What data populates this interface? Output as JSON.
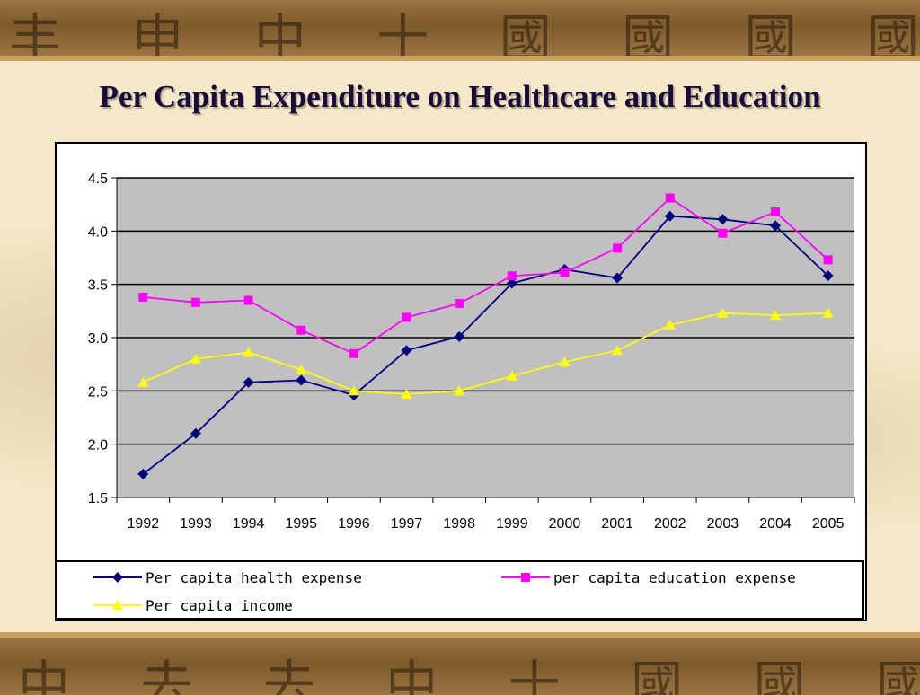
{
  "page": {
    "title": "Per Capita Expenditure on Healthcare and Education",
    "colors": {
      "band": "#7d5a2c",
      "paper": "#f4e8c8",
      "title": "#1a0c3a",
      "plot_area": "#c0c0c0"
    }
  },
  "chart_data": {
    "type": "line",
    "title": "",
    "xlabel": "",
    "ylabel": "",
    "categories": [
      "1992",
      "1993",
      "1994",
      "1995",
      "1996",
      "1997",
      "1998",
      "1999",
      "2000",
      "2001",
      "2002",
      "2003",
      "2004",
      "2005"
    ],
    "ylim": [
      1.5,
      4.5
    ],
    "yticks": [
      "1.5",
      "2.0",
      "2.5",
      "3.0",
      "3.5",
      "4.0",
      "4.5"
    ],
    "grid": "horizontal",
    "legend_position": "bottom",
    "series": [
      {
        "name": "Per capita health expense",
        "color": "#000080",
        "marker": "diamond",
        "values": [
          1.72,
          2.1,
          2.58,
          2.6,
          2.46,
          2.88,
          3.01,
          3.51,
          3.64,
          3.56,
          4.14,
          4.11,
          4.05,
          3.58
        ]
      },
      {
        "name": "per capita education expense",
        "color": "#ff00ff",
        "marker": "square",
        "values": [
          3.38,
          3.33,
          3.35,
          3.07,
          2.85,
          3.19,
          3.32,
          3.58,
          3.61,
          3.84,
          4.31,
          3.98,
          4.18,
          3.73
        ]
      },
      {
        "name": "Per capita income",
        "color": "#ffff00",
        "marker": "triangle",
        "values": [
          2.58,
          2.8,
          2.86,
          2.7,
          2.5,
          2.47,
          2.5,
          2.64,
          2.77,
          2.88,
          3.12,
          3.23,
          3.21,
          3.23
        ]
      }
    ]
  }
}
